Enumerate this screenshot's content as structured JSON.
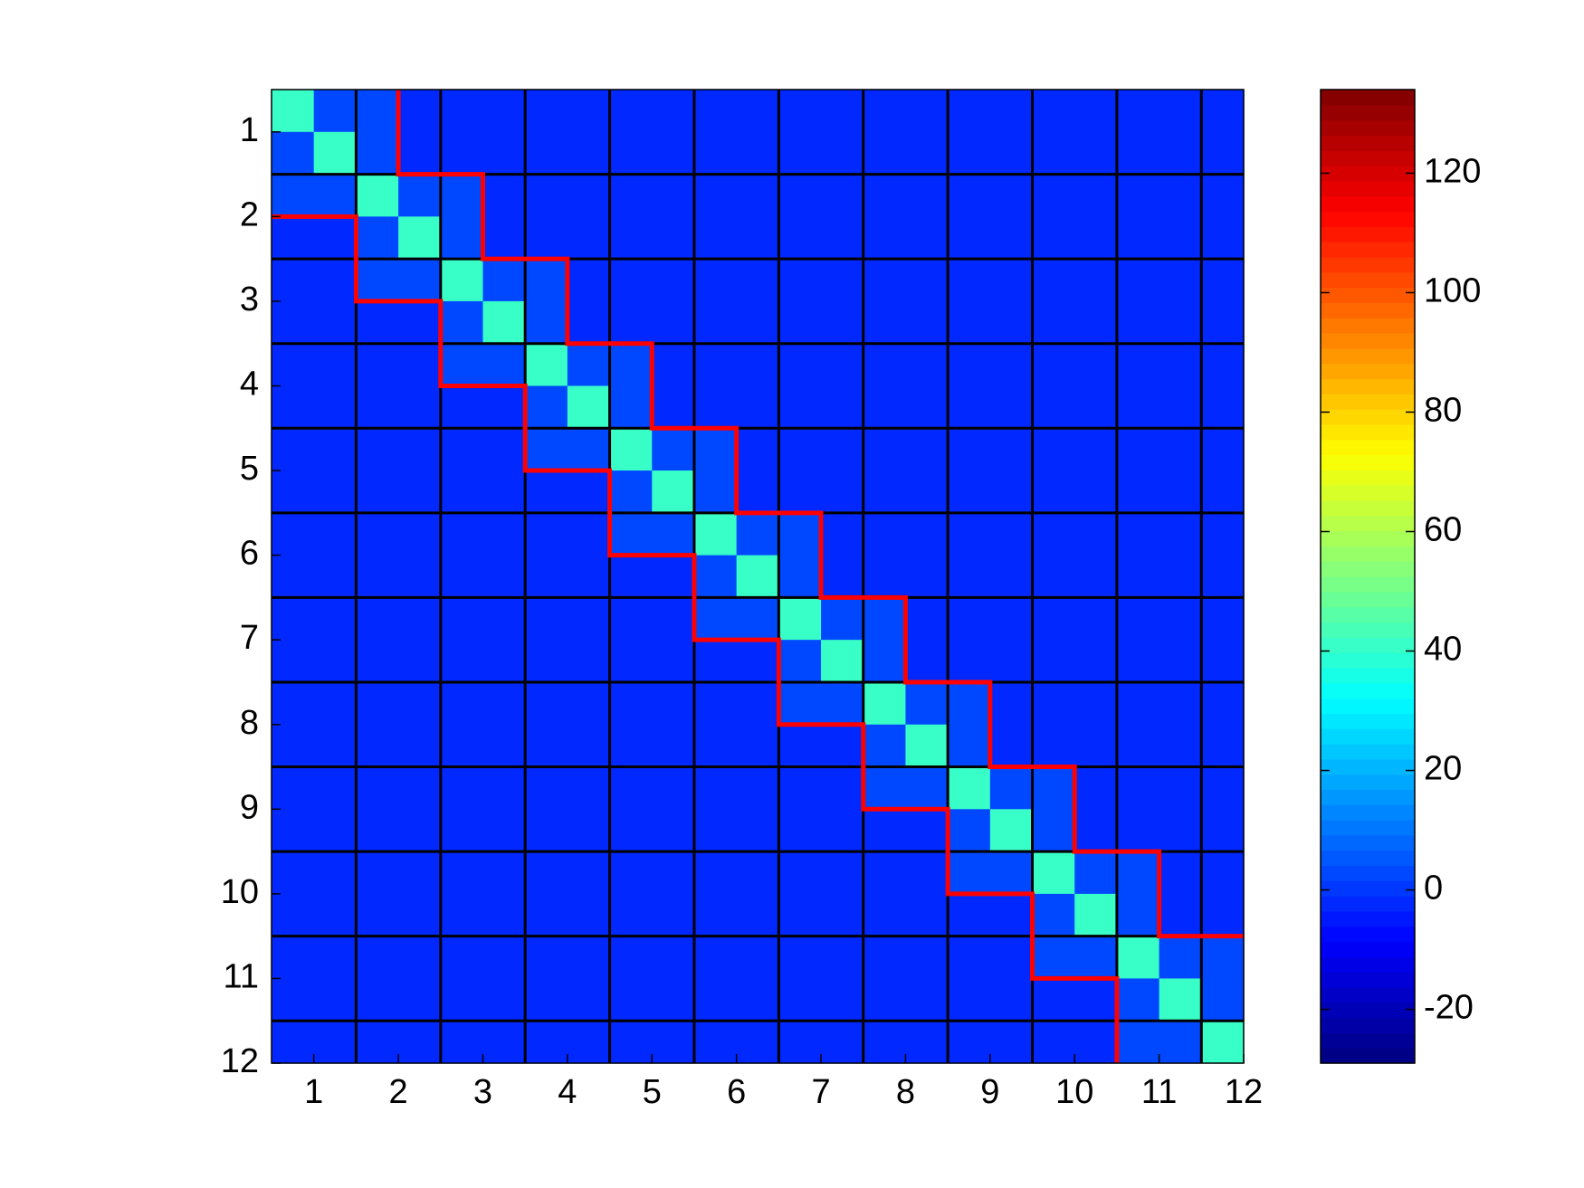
{
  "chart_data": {
    "type": "heatmap",
    "xticks": [
      1,
      2,
      3,
      4,
      5,
      6,
      7,
      8,
      9,
      10,
      11,
      12
    ],
    "yticks": [
      1,
      2,
      3,
      4,
      5,
      6,
      7,
      8,
      9,
      10,
      11,
      12
    ],
    "xlim": [
      0.5,
      12
    ],
    "ylim": [
      0.5,
      12
    ],
    "colormap": "jet",
    "grid_color": "#000000",
    "band_outline_color": "#ff0000",
    "colorbar": {
      "clim": [
        -29,
        134
      ],
      "ticks": [
        -20,
        0,
        20,
        40,
        60,
        80,
        100,
        120
      ]
    },
    "z": [
      [
        40,
        3,
        3,
        -1,
        -1,
        -1,
        -1,
        -1,
        -1,
        -1,
        -1,
        -1,
        -1,
        -1,
        -1,
        -1,
        -1,
        -1,
        -1,
        -1,
        -1,
        -1,
        -1
      ],
      [
        3,
        40,
        3,
        -1,
        -1,
        -1,
        -1,
        -1,
        -1,
        -1,
        -1,
        -1,
        -1,
        -1,
        -1,
        -1,
        -1,
        -1,
        -1,
        -1,
        -1,
        -1,
        -1
      ],
      [
        3,
        3,
        40,
        3,
        3,
        -1,
        -1,
        -1,
        -1,
        -1,
        -1,
        -1,
        -1,
        -1,
        -1,
        -1,
        -1,
        -1,
        -1,
        -1,
        -1,
        -1,
        -1
      ],
      [
        -1,
        -1,
        3,
        40,
        3,
        -1,
        -1,
        -1,
        -1,
        -1,
        -1,
        -1,
        -1,
        -1,
        -1,
        -1,
        -1,
        -1,
        -1,
        -1,
        -1,
        -1,
        -1
      ],
      [
        -1,
        -1,
        3,
        3,
        40,
        3,
        3,
        -1,
        -1,
        -1,
        -1,
        -1,
        -1,
        -1,
        -1,
        -1,
        -1,
        -1,
        -1,
        -1,
        -1,
        -1,
        -1
      ],
      [
        -1,
        -1,
        -1,
        -1,
        3,
        40,
        3,
        -1,
        -1,
        -1,
        -1,
        -1,
        -1,
        -1,
        -1,
        -1,
        -1,
        -1,
        -1,
        -1,
        -1,
        -1,
        -1
      ],
      [
        -1,
        -1,
        -1,
        -1,
        3,
        3,
        40,
        3,
        3,
        -1,
        -1,
        -1,
        -1,
        -1,
        -1,
        -1,
        -1,
        -1,
        -1,
        -1,
        -1,
        -1,
        -1
      ],
      [
        -1,
        -1,
        -1,
        -1,
        -1,
        -1,
        3,
        40,
        3,
        -1,
        -1,
        -1,
        -1,
        -1,
        -1,
        -1,
        -1,
        -1,
        -1,
        -1,
        -1,
        -1,
        -1
      ],
      [
        -1,
        -1,
        -1,
        -1,
        -1,
        -1,
        3,
        3,
        40,
        3,
        3,
        -1,
        -1,
        -1,
        -1,
        -1,
        -1,
        -1,
        -1,
        -1,
        -1,
        -1,
        -1
      ],
      [
        -1,
        -1,
        -1,
        -1,
        -1,
        -1,
        -1,
        -1,
        3,
        40,
        3,
        -1,
        -1,
        -1,
        -1,
        -1,
        -1,
        -1,
        -1,
        -1,
        -1,
        -1,
        -1
      ],
      [
        -1,
        -1,
        -1,
        -1,
        -1,
        -1,
        -1,
        -1,
        3,
        3,
        40,
        3,
        3,
        -1,
        -1,
        -1,
        -1,
        -1,
        -1,
        -1,
        -1,
        -1,
        -1
      ],
      [
        -1,
        -1,
        -1,
        -1,
        -1,
        -1,
        -1,
        -1,
        -1,
        -1,
        3,
        40,
        3,
        -1,
        -1,
        -1,
        -1,
        -1,
        -1,
        -1,
        -1,
        -1,
        -1
      ],
      [
        -1,
        -1,
        -1,
        -1,
        -1,
        -1,
        -1,
        -1,
        -1,
        -1,
        3,
        3,
        40,
        3,
        3,
        -1,
        -1,
        -1,
        -1,
        -1,
        -1,
        -1,
        -1
      ],
      [
        -1,
        -1,
        -1,
        -1,
        -1,
        -1,
        -1,
        -1,
        -1,
        -1,
        -1,
        -1,
        3,
        40,
        3,
        -1,
        -1,
        -1,
        -1,
        -1,
        -1,
        -1,
        -1
      ],
      [
        -1,
        -1,
        -1,
        -1,
        -1,
        -1,
        -1,
        -1,
        -1,
        -1,
        -1,
        -1,
        3,
        3,
        40,
        3,
        3,
        -1,
        -1,
        -1,
        -1,
        -1,
        -1
      ],
      [
        -1,
        -1,
        -1,
        -1,
        -1,
        -1,
        -1,
        -1,
        -1,
        -1,
        -1,
        -1,
        -1,
        -1,
        3,
        40,
        3,
        -1,
        -1,
        -1,
        -1,
        -1,
        -1
      ],
      [
        -1,
        -1,
        -1,
        -1,
        -1,
        -1,
        -1,
        -1,
        -1,
        -1,
        -1,
        -1,
        -1,
        -1,
        3,
        3,
        40,
        3,
        3,
        -1,
        -1,
        -1,
        -1
      ],
      [
        -1,
        -1,
        -1,
        -1,
        -1,
        -1,
        -1,
        -1,
        -1,
        -1,
        -1,
        -1,
        -1,
        -1,
        -1,
        -1,
        3,
        40,
        3,
        -1,
        -1,
        -1,
        -1
      ],
      [
        -1,
        -1,
        -1,
        -1,
        -1,
        -1,
        -1,
        -1,
        -1,
        -1,
        -1,
        -1,
        -1,
        -1,
        -1,
        -1,
        3,
        3,
        40,
        3,
        3,
        -1,
        -1
      ],
      [
        -1,
        -1,
        -1,
        -1,
        -1,
        -1,
        -1,
        -1,
        -1,
        -1,
        -1,
        -1,
        -1,
        -1,
        -1,
        -1,
        -1,
        -1,
        3,
        40,
        3,
        -1,
        -1
      ],
      [
        -1,
        -1,
        -1,
        -1,
        -1,
        -1,
        -1,
        -1,
        -1,
        -1,
        -1,
        -1,
        -1,
        -1,
        -1,
        -1,
        -1,
        -1,
        3,
        3,
        40,
        3,
        3
      ],
      [
        -1,
        -1,
        -1,
        -1,
        -1,
        -1,
        -1,
        -1,
        -1,
        -1,
        -1,
        -1,
        -1,
        -1,
        -1,
        -1,
        -1,
        -1,
        -1,
        -1,
        3,
        40,
        3
      ],
      [
        -1,
        -1,
        -1,
        -1,
        -1,
        -1,
        -1,
        -1,
        -1,
        -1,
        -1,
        -1,
        -1,
        -1,
        -1,
        -1,
        -1,
        -1,
        -1,
        -1,
        3,
        3,
        40
      ]
    ]
  }
}
